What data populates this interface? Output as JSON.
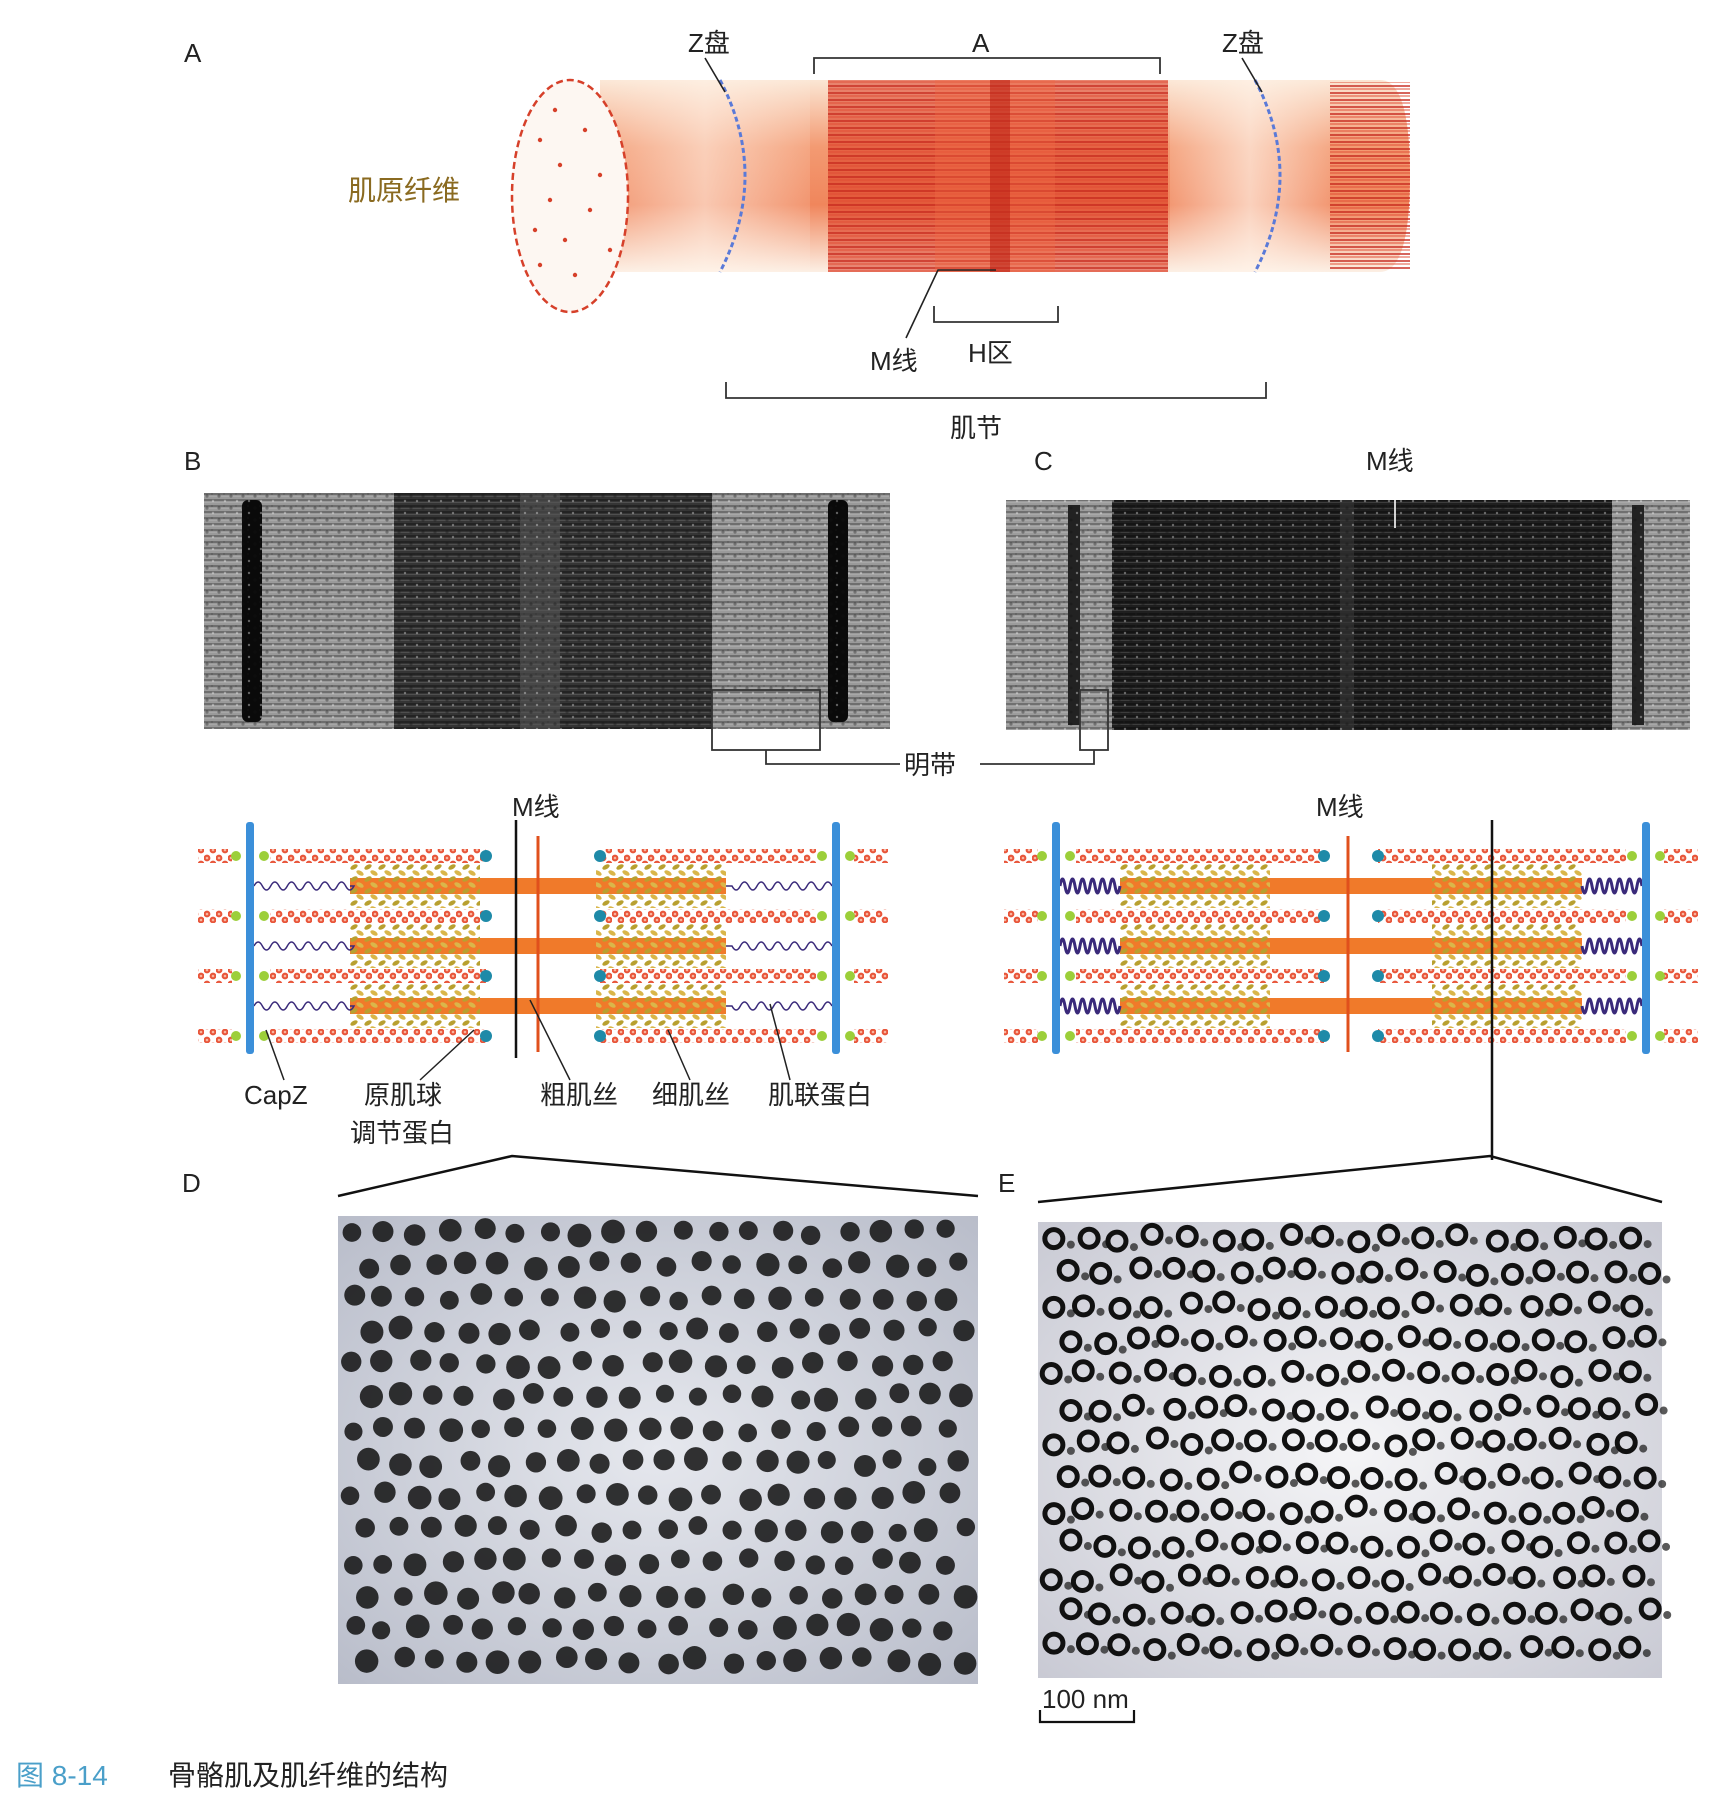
{
  "panels": {
    "A": "A",
    "B": "B",
    "C": "C",
    "D": "D",
    "E": "E"
  },
  "panel_a": {
    "myofibril": "肌原纤维",
    "z_disc_left": "Z盘",
    "z_disc_right": "Z盘",
    "a_band": "A",
    "m_line": "M线",
    "h_zone": "H区",
    "sarcomere": "肌节"
  },
  "panel_c": {
    "m_line": "M线"
  },
  "em_common": {
    "i_band": "明带"
  },
  "schematic_b": {
    "m_line": "M线",
    "capz": "CapZ",
    "tropomodulin_1": "原肌球",
    "tropomodulin_2": "调节蛋白",
    "thick_filament": "粗肌丝",
    "thin_filament": "细肌丝",
    "titin": "肌联蛋白"
  },
  "schematic_c": {
    "m_line": "M线"
  },
  "scale_bar": "100 nm",
  "caption": {
    "number": "图 8-14",
    "text": "骨骼肌及肌纤维的结构"
  },
  "colors": {
    "z_disc": "#3b8fd9",
    "actin": "#e8553a",
    "thick": "#f07a2a",
    "myosin_heads": "#b8a030",
    "titin": "#3a2a7a",
    "capz": "#9ccf3a",
    "tropomodulin": "#1e8aa8"
  }
}
